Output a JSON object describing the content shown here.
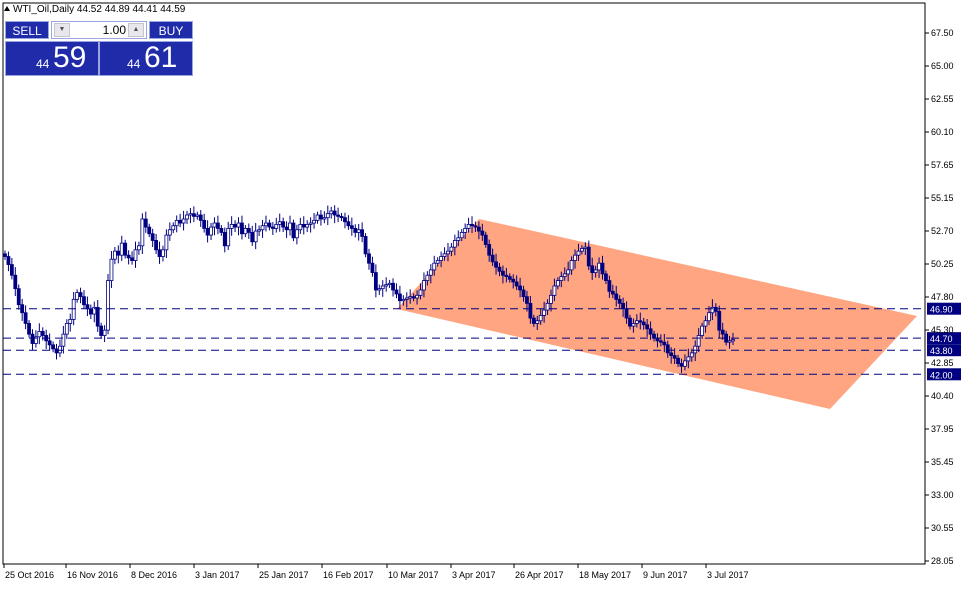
{
  "header": {
    "symbol_info": "WTI_Oil,Daily  44.52 44.89 44.41 44.59"
  },
  "trade_panel": {
    "sell_label": "SELL",
    "buy_label": "BUY",
    "volume": "1.00",
    "bid_prefix": "44",
    "bid_big": "59",
    "ask_prefix": "44",
    "ask_big": "61"
  },
  "colors": {
    "candle": "#000080",
    "channel_fill": "#FFA07A",
    "hline": "#000080",
    "label_bg": "#000080",
    "axis": "#000000"
  },
  "chart_data": {
    "type": "candlestick",
    "y_ticks": [
      "67.50",
      "65.00",
      "62.55",
      "60.10",
      "57.65",
      "55.15",
      "52.70",
      "50.25",
      "47.80",
      "45.30",
      "42.85",
      "40.40",
      "37.95",
      "35.45",
      "33.00",
      "30.55",
      "28.05"
    ],
    "x_ticks": [
      "25 Oct 2016",
      "16 Nov 2016",
      "8 Dec 2016",
      "3 Jan 2017",
      "25 Jan 2017",
      "16 Feb 2017",
      "10 Mar 2017",
      "3 Apr 2017",
      "26 Apr 2017",
      "18 May 2017",
      "9 Jun 2017",
      "3 Jul 2017"
    ],
    "horizontal_lines": [
      {
        "value": 46.9,
        "label": "46.90"
      },
      {
        "value": 44.7,
        "label": "44.70"
      },
      {
        "value": 43.8,
        "label": "43.80"
      },
      {
        "value": 42.0,
        "label": "42.00"
      }
    ],
    "channel_polygon": [
      {
        "x": "10 Mar 2017",
        "y": 47.2
      },
      {
        "x": "4 Apr 2017",
        "y": 53.9
      },
      {
        "x": "late Jul 2017",
        "y": 46.3
      },
      {
        "x": "late Jul 2017",
        "y": 39.6
      }
    ],
    "closes": [
      50.8,
      50.2,
      49.4,
      48.4,
      47.2,
      46.6,
      45.8,
      45.0,
      44.3,
      44.8,
      45.2,
      44.9,
      44.5,
      44.2,
      43.9,
      43.6,
      44.1,
      45.0,
      45.8,
      46.1,
      47.6,
      48.1,
      47.8,
      47.2,
      46.9,
      46.5,
      47.0,
      45.6,
      44.9,
      45.3,
      49.0,
      50.6,
      51.2,
      50.9,
      51.8,
      50.9,
      50.7,
      50.5,
      51.3,
      51.6,
      53.6,
      53.0,
      52.5,
      52.0,
      51.3,
      50.8,
      51.3,
      52.4,
      52.8,
      53.1,
      53.5,
      53.3,
      53.6,
      53.9,
      54.0,
      53.8,
      53.9,
      53.5,
      52.9,
      52.4,
      53.0,
      53.3,
      52.9,
      52.6,
      51.6,
      52.9,
      53.2,
      53.0,
      53.3,
      52.5,
      52.9,
      52.6,
      51.9,
      52.7,
      52.8,
      53.1,
      53.3,
      53.0,
      52.9,
      53.2,
      53.4,
      53.0,
      52.8,
      53.3,
      52.2,
      52.8,
      53.2,
      53.0,
      53.2,
      53.3,
      53.5,
      53.9,
      53.6,
      53.7,
      54.0,
      54.2,
      53.9,
      53.8,
      53.7,
      53.4,
      53.1,
      52.9,
      52.6,
      52.8,
      52.3,
      51.0,
      50.3,
      49.6,
      48.3,
      48.4,
      48.6,
      48.7,
      48.8,
      48.3,
      48.0,
      47.5,
      47.6,
      47.7,
      47.8,
      47.7,
      47.9,
      48.3,
      49.0,
      49.4,
      49.8,
      50.3,
      50.5,
      50.8,
      51.0,
      51.2,
      51.5,
      52.0,
      52.2,
      52.6,
      52.9,
      53.2,
      53.1,
      53.0,
      52.7,
      52.4,
      51.7,
      50.9,
      50.4,
      50.0,
      49.7,
      49.4,
      49.3,
      49.1,
      48.9,
      48.6,
      48.3,
      47.8,
      47.3,
      46.2,
      45.8,
      46.0,
      46.4,
      46.8,
      47.3,
      47.9,
      48.6,
      49.0,
      49.3,
      49.5,
      49.8,
      50.5,
      50.9,
      51.2,
      51.4,
      51.5,
      50.1,
      49.6,
      49.8,
      50.3,
      49.5,
      49.0,
      48.2,
      48.0,
      47.6,
      47.3,
      46.9,
      46.2,
      45.6,
      45.8,
      46.0,
      45.9,
      45.7,
      45.4,
      45.0,
      44.7,
      44.5,
      44.4,
      44.2,
      43.6,
      43.4,
      43.2,
      42.8,
      42.6,
      43.0,
      43.3,
      43.6,
      44.1,
      44.9,
      45.6,
      46.0,
      46.6,
      47.0,
      46.7,
      45.3,
      45.0,
      44.4,
      44.5,
      44.6
    ]
  }
}
